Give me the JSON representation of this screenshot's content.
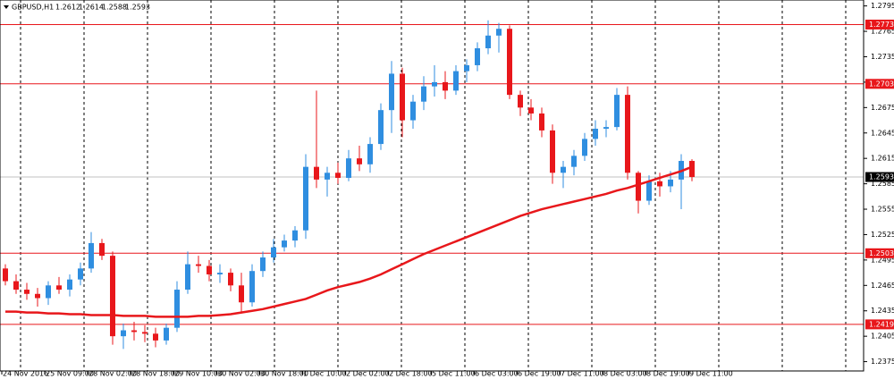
{
  "chart_data": {
    "type": "candlestick",
    "symbol": "GBPUSD,H1",
    "categories": [
      "24 Nov 2016",
      null,
      null,
      null,
      "25 Nov 09:00",
      null,
      null,
      null,
      "28 Nov 02:00",
      null,
      null,
      null,
      "28 Nov 18:00",
      null,
      null,
      null,
      "29 Nov 10:00",
      null,
      null,
      null,
      "30 Nov 02:00",
      null,
      null,
      null,
      "30 Nov 18:00",
      null,
      null,
      null,
      "1 Dec 10:00",
      null,
      null,
      null,
      "2 Dec 02:00",
      null,
      null,
      null,
      "2 Dec 18:00",
      null,
      null,
      null,
      "5 Dec 11:00",
      null,
      null,
      null,
      "6 Dec 03:00",
      null,
      null,
      null,
      "6 Dec 19:00",
      null,
      null,
      null,
      "7 Dec 11:00",
      null,
      null,
      null,
      "8 Dec 03:00",
      null,
      null,
      null,
      "8 Dec 19:00",
      null,
      null,
      null,
      "9 Dec 11:00"
    ],
    "open": [
      1.2485,
      1.247,
      1.246,
      1.2455,
      1.245,
      1.2465,
      1.246,
      1.2472,
      1.2485,
      1.2515,
      1.25,
      1.2405,
      1.2412,
      1.241,
      1.2408,
      1.24,
      1.2415,
      1.246,
      1.249,
      1.2488,
      1.2478,
      1.248,
      1.2465,
      1.2445,
      1.2482,
      1.2498,
      1.251,
      1.2518,
      1.253,
      1.2605,
      1.259,
      1.2598,
      1.2592,
      1.2615,
      1.2608,
      1.2632,
      1.2672,
      1.2715,
      1.266,
      1.2682,
      1.27,
      1.2705,
      1.2695,
      1.2718,
      1.2725,
      1.2745,
      1.276,
      1.2768,
      1.269,
      1.2675,
      1.2668,
      1.2648,
      1.2598,
      1.2605,
      1.2618,
      1.2638,
      1.265,
      1.2652,
      1.269,
      1.2598,
      1.2565,
      1.2588,
      1.2582,
      1.259,
      1.2612
    ],
    "high": [
      1.249,
      1.2478,
      1.2468,
      1.2462,
      1.247,
      1.2475,
      1.2478,
      1.2492,
      1.2528,
      1.252,
      1.2505,
      1.242,
      1.2422,
      1.2418,
      1.2415,
      1.242,
      1.247,
      1.2505,
      1.25,
      1.2495,
      1.249,
      1.2485,
      1.248,
      1.249,
      1.2505,
      1.252,
      1.2525,
      1.2535,
      1.262,
      1.2695,
      1.2605,
      1.261,
      1.2625,
      1.263,
      1.264,
      1.268,
      1.273,
      1.2722,
      1.269,
      1.2712,
      1.2725,
      1.2718,
      1.2725,
      1.2732,
      1.2752,
      1.2778,
      1.2775,
      1.2772,
      1.2695,
      1.2685,
      1.2675,
      1.2655,
      1.2612,
      1.2625,
      1.2645,
      1.266,
      1.266,
      1.2698,
      1.27,
      1.26,
      1.2595,
      1.2598,
      1.26,
      1.262,
      1.2614
    ],
    "low": [
      1.2465,
      1.2455,
      1.2448,
      1.244,
      1.2442,
      1.2455,
      1.2452,
      1.2465,
      1.248,
      1.2495,
      1.2395,
      1.239,
      1.24,
      1.2398,
      1.2392,
      1.2395,
      1.241,
      1.2455,
      1.248,
      1.247,
      1.2468,
      1.2458,
      1.2432,
      1.244,
      1.2475,
      1.2492,
      1.2505,
      1.251,
      1.252,
      1.258,
      1.257,
      1.2585,
      1.2588,
      1.26,
      1.2598,
      1.2625,
      1.2645,
      1.264,
      1.265,
      1.2672,
      1.2688,
      1.2685,
      1.269,
      1.2705,
      1.2718,
      1.2738,
      1.274,
      1.2685,
      1.2665,
      1.266,
      1.264,
      1.2585,
      1.258,
      1.2595,
      1.2612,
      1.263,
      1.264,
      1.2648,
      1.259,
      1.255,
      1.256,
      1.257,
      1.2575,
      1.2555,
      1.2588
    ],
    "close": [
      1.247,
      1.246,
      1.2455,
      1.245,
      1.2465,
      1.246,
      1.2472,
      1.2485,
      1.2515,
      1.25,
      1.2405,
      1.2412,
      1.241,
      1.2408,
      1.24,
      1.2415,
      1.246,
      1.249,
      1.2488,
      1.2478,
      1.248,
      1.2465,
      1.2445,
      1.2482,
      1.2498,
      1.251,
      1.2518,
      1.253,
      1.2605,
      1.259,
      1.2598,
      1.2592,
      1.2615,
      1.2608,
      1.2632,
      1.2672,
      1.2715,
      1.266,
      1.2682,
      1.27,
      1.2705,
      1.2695,
      1.2718,
      1.2725,
      1.2745,
      1.276,
      1.2768,
      1.269,
      1.2675,
      1.2668,
      1.2648,
      1.2598,
      1.2605,
      1.2618,
      1.2638,
      1.265,
      1.2652,
      1.269,
      1.2598,
      1.2565,
      1.2588,
      1.2582,
      1.259,
      1.2612,
      1.2593
    ],
    "up_color": "#2f8ee0",
    "down_color": "#e8171b",
    "moving_average": {
      "color": "#e8171b",
      "values": [
        1.2434,
        1.2434,
        1.2433,
        1.2433,
        1.2432,
        1.2432,
        1.2431,
        1.2431,
        1.243,
        1.243,
        1.243,
        1.2429,
        1.2429,
        1.2429,
        1.2428,
        1.2428,
        1.2428,
        1.2428,
        1.2429,
        1.2429,
        1.243,
        1.2431,
        1.2433,
        1.2435,
        1.2437,
        1.244,
        1.2443,
        1.2446,
        1.2449,
        1.2454,
        1.2459,
        1.2463,
        1.2466,
        1.2469,
        1.2473,
        1.2478,
        1.2484,
        1.249,
        1.2496,
        1.2502,
        1.2507,
        1.2512,
        1.2517,
        1.2522,
        1.2527,
        1.2532,
        1.2537,
        1.2542,
        1.2547,
        1.2551,
        1.2555,
        1.2558,
        1.2561,
        1.2564,
        1.2567,
        1.257,
        1.2573,
        1.2577,
        1.258,
        1.2584,
        1.2588,
        1.2592,
        1.2596,
        1.26,
        1.2605
      ]
    },
    "levels": [
      {
        "value": 1.2773,
        "color": "#e8171b"
      },
      {
        "value": 1.2703,
        "color": "#e8171b"
      },
      {
        "value": 1.2503,
        "color": "#e8171b"
      },
      {
        "value": 1.2419,
        "color": "#e8171b"
      }
    ],
    "price_line_color": "#c0c0c0",
    "ylim": [
      1.2364,
      1.2802
    ],
    "yticks": [
      1.2375,
      1.2405,
      1.2435,
      1.2465,
      1.2495,
      1.2525,
      1.2555,
      1.2585,
      1.2615,
      1.2645,
      1.2675,
      1.2705,
      1.2735,
      1.2765,
      1.2795
    ]
  }
}
